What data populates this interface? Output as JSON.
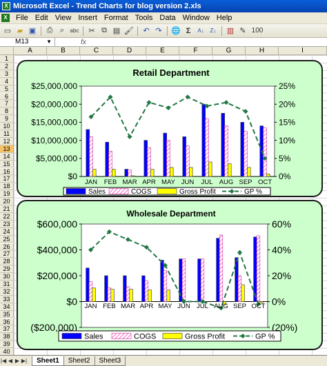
{
  "window": {
    "title": "Microsoft Excel - Trend Charts for blog version 2.xls",
    "app_icon": "excel-icon"
  },
  "menu": [
    "File",
    "Edit",
    "View",
    "Insert",
    "Format",
    "Tools",
    "Data",
    "Window",
    "Help"
  ],
  "toolbar": {
    "icons": [
      "new-icon",
      "open-icon",
      "save-icon",
      "print-icon",
      "print-preview-icon",
      "spelling-icon",
      "cut-icon",
      "copy-icon",
      "paste-icon",
      "format-painter-icon",
      "undo-icon",
      "redo-icon",
      "hyperlink-icon",
      "autosum-icon",
      "sort-ascending-icon",
      "sort-descending-icon",
      "chart-wizard-icon",
      "drawing-icon",
      "zoom-icon"
    ],
    "zoom": "100"
  },
  "formula_bar": {
    "name_box": "M13",
    "fx": "fx",
    "content": ""
  },
  "columns": [
    "A",
    "B",
    "C",
    "D",
    "E",
    "F",
    "G",
    "H",
    "I"
  ],
  "rows": [
    "1",
    "2",
    "3",
    "4",
    "5",
    "6",
    "7",
    "8",
    "9",
    "10",
    "11",
    "12",
    "13",
    "14",
    "15",
    "16",
    "17",
    "18",
    "19",
    "20",
    "21",
    "22",
    "23",
    "24",
    "25",
    "26",
    "27",
    "28",
    "29",
    "30",
    "31",
    "32",
    "33",
    "34",
    "35",
    "36",
    "37",
    "38",
    "39",
    "40"
  ],
  "active_row": "13",
  "charts": [
    {
      "title": "Retail Department",
      "type": "bar+line",
      "colors": {
        "Sales": "#0000ff",
        "COGS": "#ff66cc",
        "Gross Profit": "#ffff00",
        "GP %": "#227744"
      },
      "left_axis": {
        "ticks": [
          "$25,000,000",
          "$20,000,000",
          "$15,000,000",
          "$10,000,000",
          "$5,000,000",
          "$0"
        ],
        "ylim": [
          0,
          25000000
        ]
      },
      "right_axis": {
        "ticks": [
          "25%",
          "20%",
          "15%",
          "10%",
          "5%",
          "0%"
        ],
        "ylim": [
          0,
          25
        ]
      },
      "legend": [
        "Sales",
        "COGS",
        "Gross Profit",
        "GP %"
      ]
    },
    {
      "title": "Wholesale Department",
      "type": "bar+line",
      "colors": {
        "Sales": "#0000ff",
        "COGS": "#ff66cc",
        "Gross Profit": "#ffff00",
        "GP %": "#227744"
      },
      "left_axis": {
        "ticks": [
          "$600,000",
          "$400,000",
          "$200,000",
          "$0",
          "($200,000)"
        ],
        "ylim": [
          -200000,
          600000
        ]
      },
      "right_axis": {
        "ticks": [
          "60%",
          "40%",
          "20%",
          "0%",
          "(20%)"
        ],
        "ylim": [
          -20,
          60
        ]
      },
      "legend": [
        "Sales",
        "COGS",
        "Gross Profit",
        "GP %"
      ]
    }
  ],
  "chart_data": [
    {
      "type": "bar",
      "title": "Retail Department",
      "categories": [
        "JAN",
        "FEB",
        "MAR",
        "APR",
        "MAY",
        "JUN",
        "JUL",
        "AUG",
        "SEP",
        "OCT"
      ],
      "series": [
        {
          "name": "Sales",
          "axis": "left",
          "values": [
            13000000,
            9500000,
            2000000,
            10000000,
            12000000,
            11000000,
            20000000,
            17500000,
            15000000,
            14000000
          ]
        },
        {
          "name": "COGS",
          "axis": "left",
          "values": [
            11000000,
            7000000,
            1800000,
            8000000,
            10000000,
            8500000,
            16000000,
            14000000,
            12500000,
            13500000
          ]
        },
        {
          "name": "Gross Profit",
          "axis": "left",
          "values": [
            2000000,
            2000000,
            200000,
            2000000,
            2500000,
            2500000,
            4000000,
            3500000,
            2500000,
            700000
          ]
        },
        {
          "name": "GP %",
          "axis": "right",
          "type": "line",
          "values": [
            16.5,
            22,
            11,
            20.5,
            19,
            22,
            19.5,
            20.5,
            18,
            5
          ]
        }
      ],
      "ylim": [
        0,
        25000000
      ],
      "y2lim": [
        0,
        25
      ],
      "legend_position": "bottom",
      "grid": false
    },
    {
      "type": "bar",
      "title": "Wholesale Department",
      "categories": [
        "JAN",
        "FEB",
        "MAR",
        "APR",
        "MAY",
        "JUN",
        "JUL",
        "AUG",
        "SEP",
        "OCT"
      ],
      "series": [
        {
          "name": "Sales",
          "axis": "left",
          "values": [
            260000,
            200000,
            200000,
            200000,
            320000,
            330000,
            330000,
            490000,
            340000,
            500000
          ]
        },
        {
          "name": "COGS",
          "axis": "left",
          "values": [
            155000,
            105000,
            115000,
            160000,
            240000,
            330000,
            330000,
            515000,
            200000,
            510000
          ]
        },
        {
          "name": "Gross Profit",
          "axis": "left",
          "values": [
            105000,
            95000,
            95000,
            90000,
            90000,
            0,
            0,
            -25000,
            130000,
            -10000
          ]
        },
        {
          "name": "GP %",
          "axis": "right",
          "type": "line",
          "values": [
            40,
            54,
            48,
            42,
            28,
            0,
            0,
            -5,
            38,
            -2
          ]
        }
      ],
      "ylim": [
        -200000,
        600000
      ],
      "y2lim": [
        -20,
        60
      ],
      "legend_position": "bottom",
      "grid": false
    }
  ],
  "sheet_tabs": [
    "Sheet1",
    "Sheet2",
    "Sheet3"
  ],
  "active_tab": "Sheet1"
}
